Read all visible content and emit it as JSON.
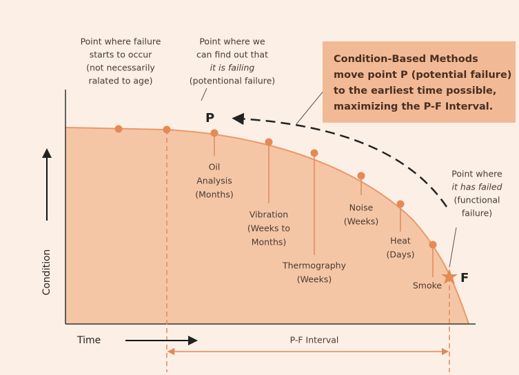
{
  "annotations": {
    "failure_start": [
      "Point where failure",
      "starts to occur",
      "(not necessarily",
      "ralated to age)"
    ],
    "potential": [
      "Point where we",
      "can find out that",
      "it is failing",
      "(potentional failure)"
    ],
    "functional": [
      "Point where",
      "it has failed",
      "(functional",
      "failure)"
    ]
  },
  "callout": [
    "Condition-Based Methods",
    "move point P (potential failure)",
    "to the earliest time possible,",
    "maximizing the P-F Interval."
  ],
  "points": {
    "p": "P",
    "f": "F"
  },
  "methods": {
    "oil": [
      "Oil",
      "Analysis",
      "(Months)"
    ],
    "vibration": [
      "Vibration",
      "(Weeks to",
      "Months)"
    ],
    "thermography": [
      "Thermography",
      "(Weeks)"
    ],
    "noise": [
      "Noise",
      "(Weeks)"
    ],
    "heat": [
      "Heat",
      "(Days)"
    ],
    "smoke": [
      "Smoke"
    ]
  },
  "axes": {
    "y": "Condition",
    "x": "Time"
  },
  "interval": "P-F Interval"
}
